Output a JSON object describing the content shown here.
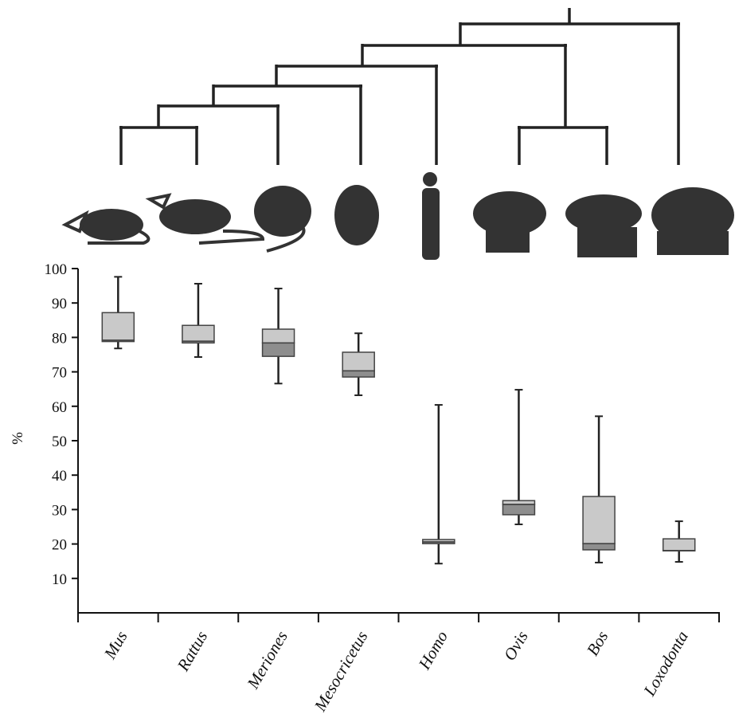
{
  "chart_data": {
    "type": "box",
    "y_label": "%",
    "categories": [
      "Mus",
      "Rattus",
      "Meriones",
      "Mesocricetus",
      "Homo",
      "Ovis",
      "Bos",
      "Loxodonta"
    ],
    "min": [
      76.8,
      74.3,
      66.6,
      63.2,
      14.3,
      25.7,
      14.6,
      14.8
    ],
    "q1": [
      78.8,
      78.4,
      74.5,
      68.5,
      20.1,
      28.5,
      18.3,
      18.0
    ],
    "median": [
      79.2,
      78.9,
      78.4,
      70.3,
      20.6,
      31.5,
      20.1,
      18.1
    ],
    "q3": [
      87.2,
      83.5,
      82.4,
      75.7,
      21.3,
      32.6,
      33.8,
      21.5
    ],
    "max": [
      97.6,
      95.6,
      94.2,
      81.2,
      60.4,
      64.8,
      57.1,
      26.6
    ],
    "upper_color": "#c9c9c9",
    "lower_color": "#8e8e8e",
    "ylim": [
      0,
      100
    ],
    "yticks": [
      10,
      20,
      30,
      40,
      50,
      60,
      70,
      80,
      90,
      100
    ]
  }
}
